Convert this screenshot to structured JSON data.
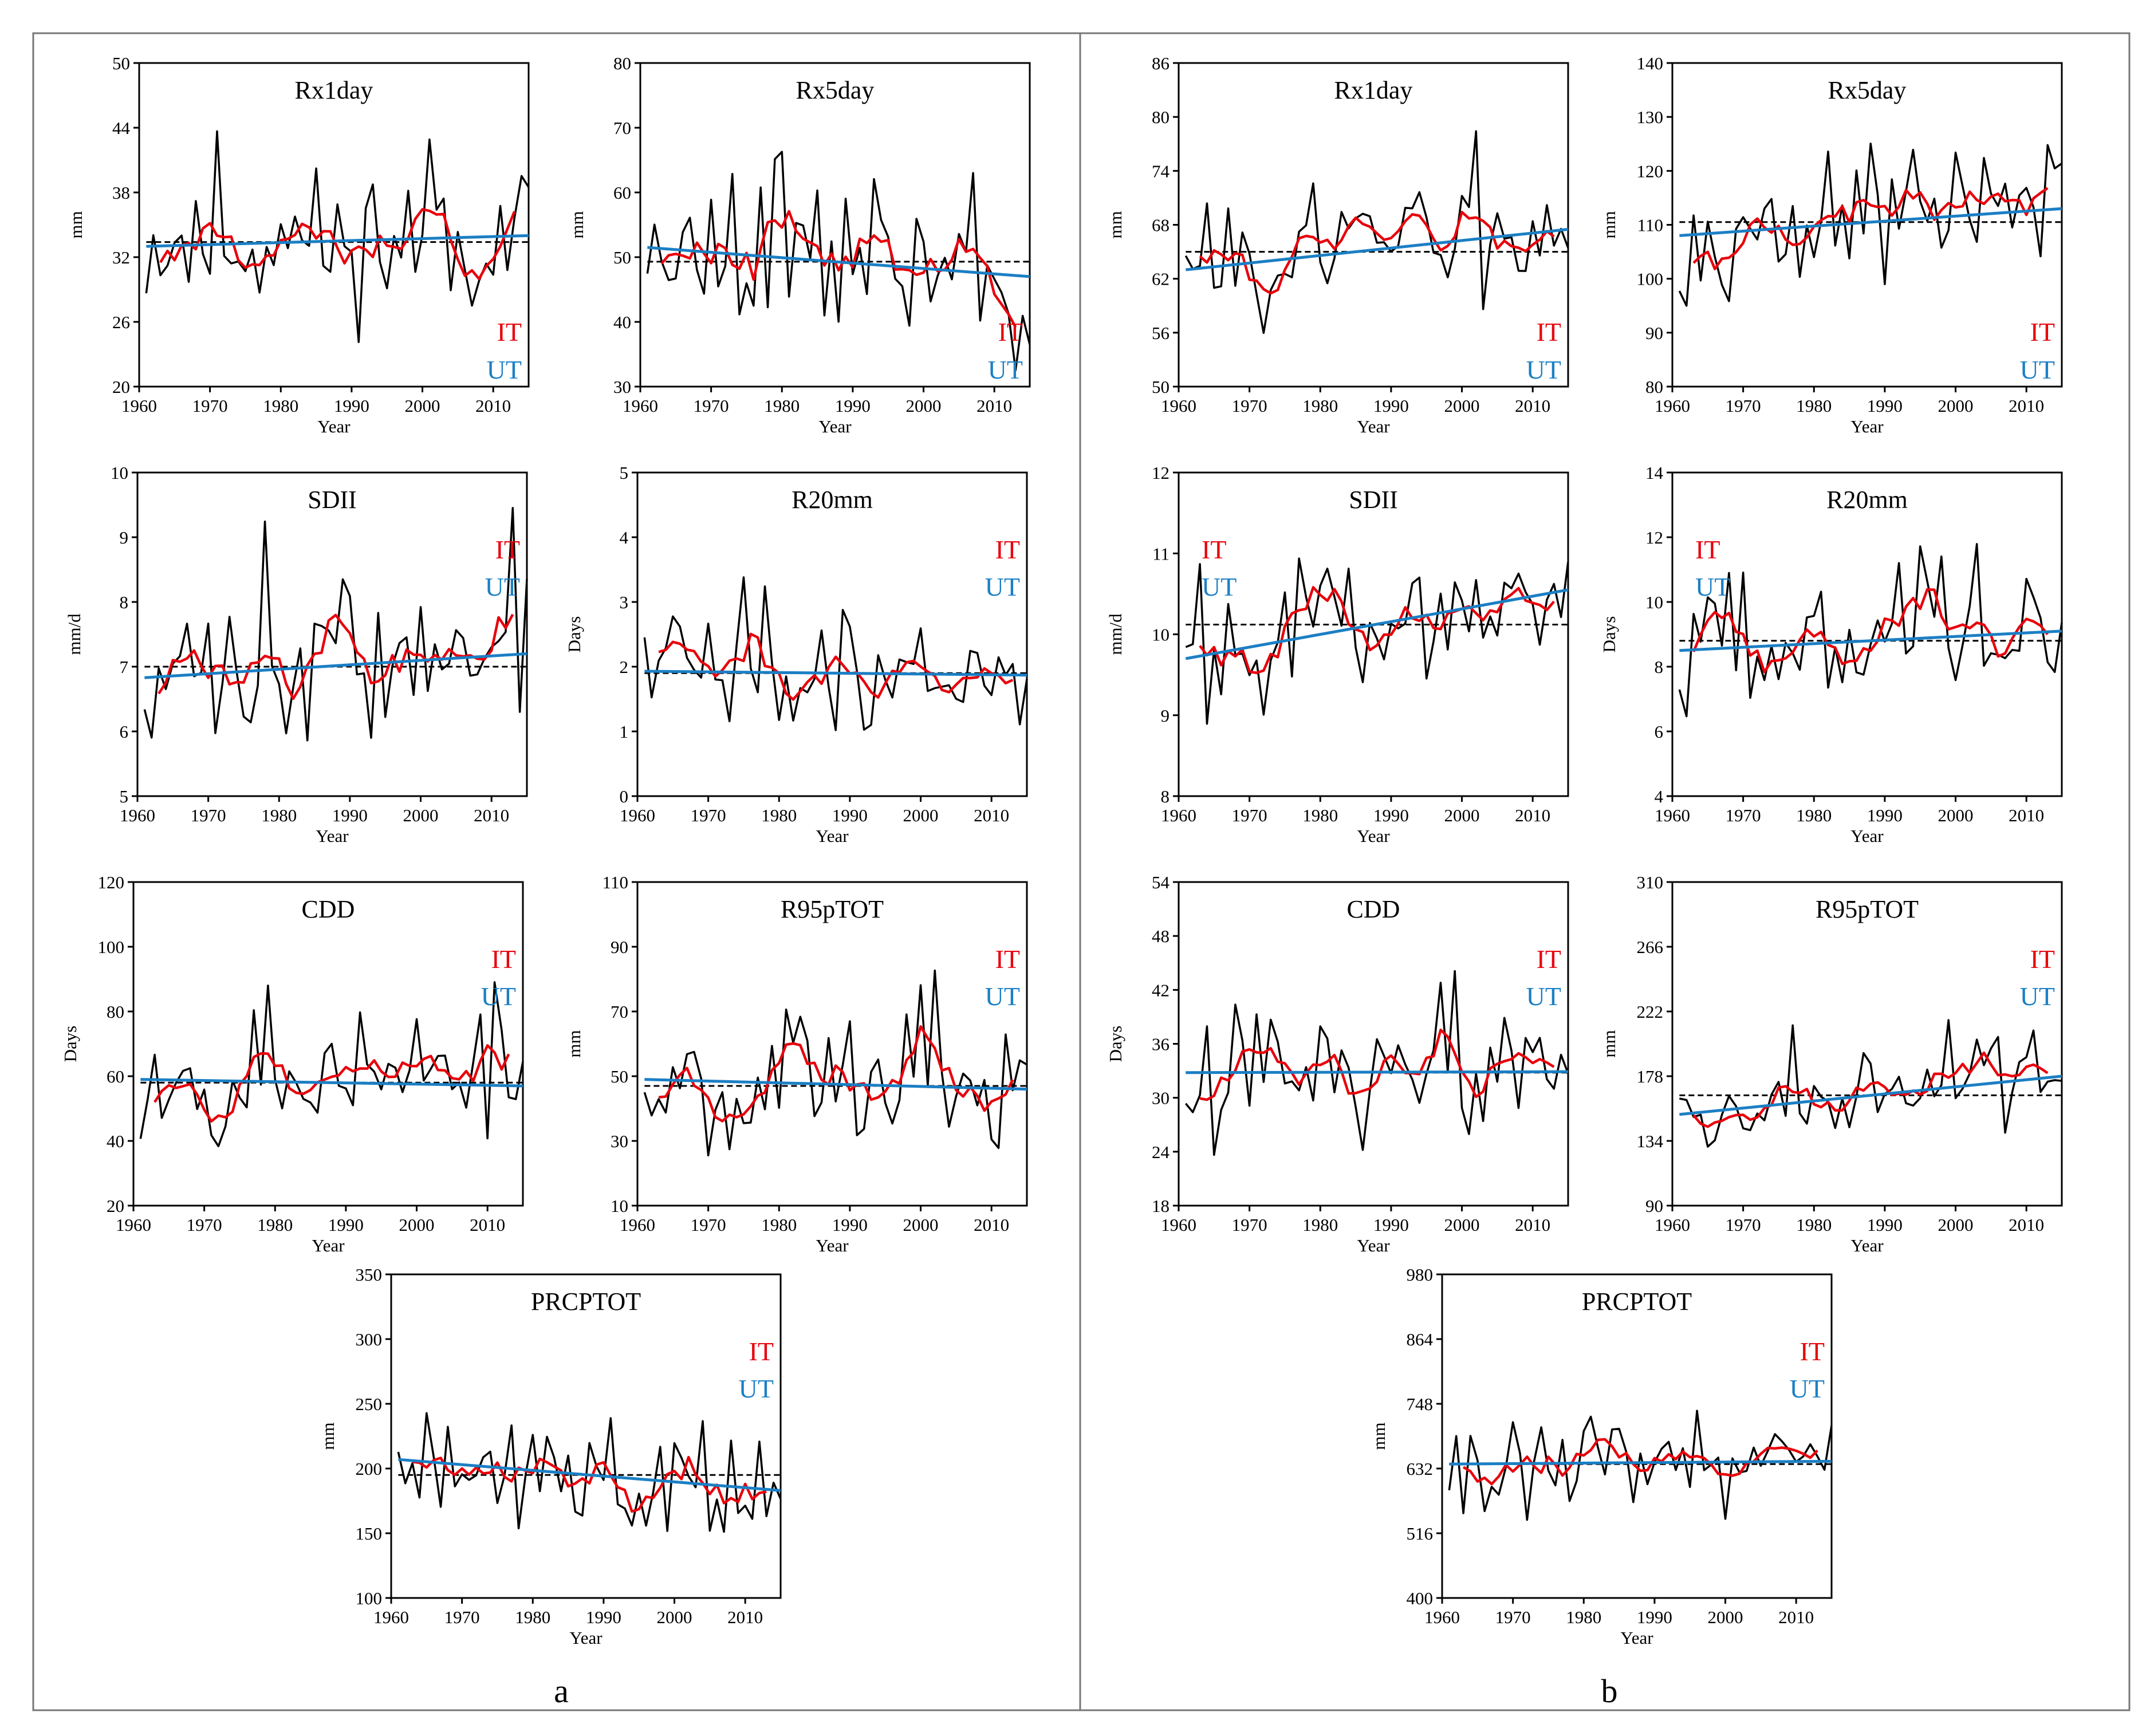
{
  "colors": {
    "raw": "#000000",
    "it": "#e8000b",
    "ut": "#1b7fc4",
    "mean": "#000000",
    "frame": "#777777"
  },
  "panels": [
    {
      "letter": "a",
      "charts": [
        {
          "key": "a-rx1day",
          "title": "Rx1day",
          "ylabel": "mm",
          "xlabel": "Year",
          "yticks": [
            20,
            26,
            32,
            38,
            44,
            50
          ],
          "xticks": [
            1960,
            1970,
            1980,
            1990,
            2000,
            2010
          ],
          "it_label": "IT",
          "ut_label": "UT",
          "legend": "bottom-right",
          "mean": 33.4,
          "ut_start": 33.0,
          "ut_end": 34.0,
          "seed": 11,
          "amp": 5.5,
          "it_wave": 2.5
        },
        {
          "key": "a-rx5day",
          "title": "Rx5day",
          "ylabel": "mm",
          "xlabel": "Year",
          "yticks": [
            30,
            40,
            50,
            60,
            70,
            80
          ],
          "xticks": [
            1960,
            1970,
            1980,
            1990,
            2000,
            2010
          ],
          "it_label": "IT",
          "ut_label": "UT",
          "legend": "bottom-right",
          "mean": 49.3,
          "ut_start": 51.5,
          "ut_end": 47.0,
          "seed": 23,
          "amp": 10,
          "it_wave": 4
        },
        {
          "key": "a-sdii",
          "title": "SDII",
          "ylabel": "mm/d",
          "xlabel": "Year",
          "yticks": [
            5,
            6,
            7,
            8,
            9,
            10
          ],
          "xticks": [
            1960,
            1970,
            1980,
            1990,
            2000,
            2010
          ],
          "it_label": "IT",
          "ut_label": "UT",
          "legend": "top-right",
          "mean": 7.0,
          "ut_start": 6.83,
          "ut_end": 7.2,
          "seed": 37,
          "amp": 0.85,
          "it_wave": 0.3
        },
        {
          "key": "a-r20mm",
          "title": "R20mm",
          "ylabel": "Days",
          "xlabel": "Year",
          "yticks": [
            0,
            1,
            2,
            3,
            4,
            5
          ],
          "xticks": [
            1960,
            1970,
            1980,
            1990,
            2000,
            2010
          ],
          "it_label": "IT",
          "ut_label": "UT",
          "legend": "top-right",
          "mean": 1.9,
          "ut_start": 1.93,
          "ut_end": 1.87,
          "seed": 41,
          "amp": 0.65,
          "it_wave": 0.25
        },
        {
          "key": "a-cdd",
          "title": "CDD",
          "ylabel": "Days",
          "xlabel": "Year",
          "yticks": [
            20,
            40,
            60,
            80,
            100,
            120
          ],
          "xticks": [
            1960,
            1970,
            1980,
            1990,
            2000,
            2010
          ],
          "it_label": "IT",
          "ut_label": "UT",
          "legend": "top-right",
          "mean": 58.0,
          "ut_start": 59.0,
          "ut_end": 57.0,
          "seed": 53,
          "amp": 14,
          "it_wave": 5
        },
        {
          "key": "a-r95ptot",
          "title": "R95pTOT",
          "ylabel": "mm",
          "xlabel": "Year",
          "yticks": [
            10,
            30,
            50,
            70,
            90,
            110
          ],
          "xticks": [
            1960,
            1970,
            1980,
            1990,
            2000,
            2010
          ],
          "it_label": "IT",
          "ut_label": "UT",
          "legend": "top-right",
          "mean": 47.0,
          "ut_start": 49.0,
          "ut_end": 46.0,
          "seed": 67,
          "amp": 17,
          "it_wave": 7
        },
        {
          "key": "a-prcptot",
          "title": "PRCPTOT",
          "ylabel": "mm",
          "xlabel": "Year",
          "yticks": [
            100,
            150,
            200,
            250,
            300,
            350
          ],
          "xticks": [
            1960,
            1970,
            1980,
            1990,
            2000,
            2010
          ],
          "it_label": "IT",
          "ut_label": "UT",
          "legend": "top-right",
          "mean": 195.0,
          "ut_start": 207.0,
          "ut_end": 183.0,
          "seed": 79,
          "amp": 38,
          "it_wave": 14
        }
      ]
    },
    {
      "letter": "b",
      "charts": [
        {
          "key": "b-rx1day",
          "title": "Rx1day",
          "ylabel": "mm",
          "xlabel": "Year",
          "yticks": [
            50,
            56,
            62,
            68,
            74,
            80,
            86
          ],
          "xticks": [
            1960,
            1970,
            1980,
            1990,
            2000,
            2010
          ],
          "it_label": "IT",
          "ut_label": "UT",
          "legend": "bottom-right",
          "mean": 65.0,
          "ut_start": 63.0,
          "ut_end": 67.5,
          "seed": 83,
          "amp": 5.5,
          "it_wave": 2.5
        },
        {
          "key": "b-rx5day",
          "title": "Rx5day",
          "ylabel": "mm",
          "xlabel": "Year",
          "yticks": [
            80,
            90,
            100,
            110,
            120,
            130,
            140
          ],
          "xticks": [
            1960,
            1970,
            1980,
            1990,
            2000,
            2010
          ],
          "it_label": "IT",
          "ut_label": "UT",
          "legend": "bottom-right",
          "mean": 110.5,
          "ut_start": 108.0,
          "ut_end": 113.0,
          "seed": 97,
          "amp": 9,
          "it_wave": 4
        },
        {
          "key": "b-sdii",
          "title": "SDII",
          "ylabel": "mm/d",
          "xlabel": "Year",
          "yticks": [
            8,
            9,
            10,
            11,
            12
          ],
          "xticks": [
            1960,
            1970,
            1980,
            1990,
            2000,
            2010
          ],
          "it_label": "IT",
          "ut_label": "UT",
          "legend": "top-left",
          "mean": 10.12,
          "ut_start": 9.7,
          "ut_end": 10.55,
          "seed": 101,
          "amp": 0.6,
          "it_wave": 0.25
        },
        {
          "key": "b-r20mm",
          "title": "R20mm",
          "ylabel": "Days",
          "xlabel": "Year",
          "yticks": [
            4,
            6,
            8,
            10,
            12,
            14
          ],
          "xticks": [
            1960,
            1970,
            1980,
            1990,
            2000,
            2010
          ],
          "it_label": "IT",
          "ut_label": "UT",
          "legend": "top-left",
          "mean": 8.8,
          "ut_start": 8.5,
          "ut_end": 9.1,
          "seed": 109,
          "amp": 1.6,
          "it_wave": 0.6
        },
        {
          "key": "b-cdd",
          "title": "CDD",
          "ylabel": "Days",
          "xlabel": "Year",
          "yticks": [
            18,
            24,
            30,
            36,
            42,
            48,
            54
          ],
          "xticks": [
            1960,
            1970,
            1980,
            1990,
            2000,
            2010
          ],
          "it_label": "IT",
          "ut_label": "UT",
          "legend": "top-right",
          "mean": 32.8,
          "ut_start": 32.8,
          "ut_end": 32.9,
          "seed": 113,
          "amp": 5.5,
          "it_wave": 2
        },
        {
          "key": "b-r95ptot",
          "title": "R95pTOT",
          "ylabel": "mm",
          "xlabel": "Year",
          "yticks": [
            90,
            134,
            178,
            222,
            266,
            310
          ],
          "xticks": [
            1960,
            1970,
            1980,
            1990,
            2000,
            2010
          ],
          "it_label": "IT",
          "ut_label": "UT",
          "legend": "top-right",
          "mean": 165.0,
          "ut_start": 152.0,
          "ut_end": 178.0,
          "seed": 127,
          "amp": 24,
          "it_wave": 10
        },
        {
          "key": "b-prcptot",
          "title": "PRCPTOT",
          "ylabel": "mm",
          "xlabel": "Year",
          "yticks": [
            400,
            516,
            632,
            748,
            864,
            980
          ],
          "xticks": [
            1960,
            1970,
            1980,
            1990,
            2000,
            2010
          ],
          "it_label": "IT",
          "ut_label": "UT",
          "legend": "top-right",
          "mean": 640.0,
          "ut_start": 640.0,
          "ut_end": 645.0,
          "seed": 131,
          "amp": 70,
          "it_wave": 28
        }
      ]
    }
  ],
  "chart_data": [
    {
      "type": "line",
      "panel": "a",
      "title": "Rx1day",
      "ylabel": "mm",
      "xlabel": "Year",
      "xlim": [
        1960,
        2015
      ],
      "ylim": [
        20,
        50
      ],
      "series": [
        {
          "name": "annual series"
        },
        {
          "name": "IT"
        },
        {
          "name": "UT"
        },
        {
          "name": "mean"
        }
      ]
    },
    {
      "type": "line",
      "panel": "a",
      "title": "Rx5day",
      "ylabel": "mm",
      "xlabel": "Year",
      "xlim": [
        1960,
        2015
      ],
      "ylim": [
        30,
        80
      ]
    },
    {
      "type": "line",
      "panel": "a",
      "title": "SDII",
      "ylabel": "mm/d",
      "xlabel": "Year",
      "xlim": [
        1960,
        2015
      ],
      "ylim": [
        5,
        10
      ]
    },
    {
      "type": "line",
      "panel": "a",
      "title": "R20mm",
      "ylabel": "Days",
      "xlabel": "Year",
      "xlim": [
        1960,
        2015
      ],
      "ylim": [
        0,
        5
      ]
    },
    {
      "type": "line",
      "panel": "a",
      "title": "CDD",
      "ylabel": "Days",
      "xlabel": "Year",
      "xlim": [
        1960,
        2015
      ],
      "ylim": [
        20,
        120
      ]
    },
    {
      "type": "line",
      "panel": "a",
      "title": "R95pTOT",
      "ylabel": "mm",
      "xlabel": "Year",
      "xlim": [
        1960,
        2015
      ],
      "ylim": [
        10,
        110
      ]
    },
    {
      "type": "line",
      "panel": "a",
      "title": "PRCPTOT",
      "ylabel": "mm",
      "xlabel": "Year",
      "xlim": [
        1960,
        2015
      ],
      "ylim": [
        100,
        350
      ]
    },
    {
      "type": "line",
      "panel": "b",
      "title": "Rx1day",
      "ylabel": "mm",
      "xlabel": "Year",
      "xlim": [
        1960,
        2015
      ],
      "ylim": [
        50,
        86
      ]
    },
    {
      "type": "line",
      "panel": "b",
      "title": "Rx5day",
      "ylabel": "mm",
      "xlabel": "Year",
      "xlim": [
        1960,
        2015
      ],
      "ylim": [
        80,
        140
      ]
    },
    {
      "type": "line",
      "panel": "b",
      "title": "SDII",
      "ylabel": "mm/d",
      "xlabel": "Year",
      "xlim": [
        1960,
        2015
      ],
      "ylim": [
        8,
        12
      ]
    },
    {
      "type": "line",
      "panel": "b",
      "title": "R20mm",
      "ylabel": "Days",
      "xlabel": "Year",
      "xlim": [
        1960,
        2015
      ],
      "ylim": [
        4,
        14
      ]
    },
    {
      "type": "line",
      "panel": "b",
      "title": "CDD",
      "ylabel": "Days",
      "xlabel": "Year",
      "xlim": [
        1960,
        2015
      ],
      "ylim": [
        18,
        54
      ]
    },
    {
      "type": "line",
      "panel": "b",
      "title": "R95pTOT",
      "ylabel": "mm",
      "xlabel": "Year",
      "xlim": [
        1960,
        2015
      ],
      "ylim": [
        90,
        310
      ]
    },
    {
      "type": "line",
      "panel": "b",
      "title": "PRCPTOT",
      "ylabel": "mm",
      "xlabel": "Year",
      "xlim": [
        1960,
        2015
      ],
      "ylim": [
        400,
        980
      ]
    }
  ]
}
